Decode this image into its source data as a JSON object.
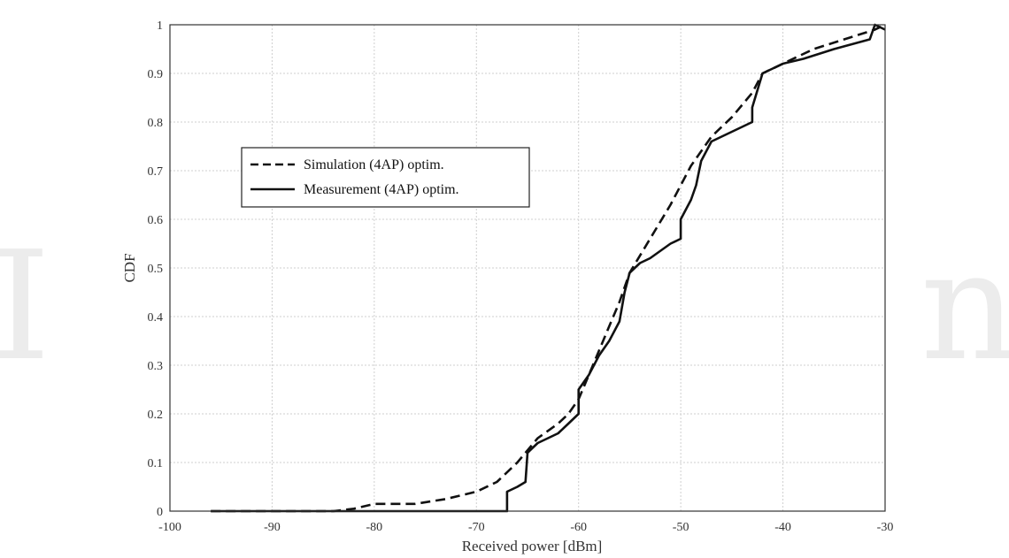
{
  "chart_data": {
    "type": "line",
    "xlabel": "Received power [dBm]",
    "ylabel": "CDF",
    "xlim": [
      -100,
      -30
    ],
    "ylim": [
      0,
      1
    ],
    "x_ticks": [
      "-100",
      "-90",
      "-80",
      "-70",
      "-60",
      "-50",
      "-40",
      "-30"
    ],
    "y_ticks": [
      "0",
      "0.1",
      "0.2",
      "0.3",
      "0.4",
      "0.5",
      "0.6",
      "0.7",
      "0.8",
      "0.9",
      "1"
    ],
    "grid": true,
    "legend_position": "upper-left",
    "series": [
      {
        "name": "Simulation (4AP) optim.",
        "style": "dashed",
        "color": "#111111",
        "x": [
          -96,
          -84,
          -82,
          -80,
          -76,
          -73,
          -70,
          -68,
          -66,
          -64,
          -62,
          -61,
          -60,
          -59,
          -58,
          -57,
          -56,
          -55,
          -53,
          -51,
          -49,
          -47,
          -45,
          -43,
          -42,
          -40,
          -37,
          -34,
          -31,
          -30
        ],
        "y": [
          0.0,
          0.0,
          0.005,
          0.015,
          0.015,
          0.025,
          0.04,
          0.06,
          0.1,
          0.15,
          0.18,
          0.2,
          0.23,
          0.28,
          0.33,
          0.38,
          0.43,
          0.49,
          0.56,
          0.63,
          0.71,
          0.77,
          0.81,
          0.86,
          0.9,
          0.92,
          0.95,
          0.97,
          0.99,
          1.0
        ]
      },
      {
        "name": "Measurement (4AP) optim.",
        "style": "solid",
        "color": "#111111",
        "x": [
          -96,
          -70,
          -67,
          -67,
          -66,
          -65.2,
          -65,
          -64,
          -63,
          -62,
          -61,
          -60,
          -60,
          -59,
          -58,
          -57,
          -56,
          -55.5,
          -55,
          -54,
          -53,
          -51,
          -50,
          -50,
          -49,
          -48.5,
          -48,
          -47,
          -46,
          -44,
          -43,
          -43,
          -42,
          -40,
          -38,
          -35,
          -31.5,
          -31,
          -30
        ],
        "y": [
          0.0,
          0.0,
          0.0,
          0.04,
          0.05,
          0.06,
          0.12,
          0.14,
          0.15,
          0.16,
          0.18,
          0.2,
          0.25,
          0.28,
          0.32,
          0.35,
          0.39,
          0.45,
          0.49,
          0.51,
          0.52,
          0.55,
          0.56,
          0.6,
          0.64,
          0.67,
          0.72,
          0.76,
          0.77,
          0.79,
          0.8,
          0.83,
          0.9,
          0.92,
          0.93,
          0.95,
          0.97,
          1.0,
          0.99
        ]
      }
    ]
  },
  "watermark": "In"
}
